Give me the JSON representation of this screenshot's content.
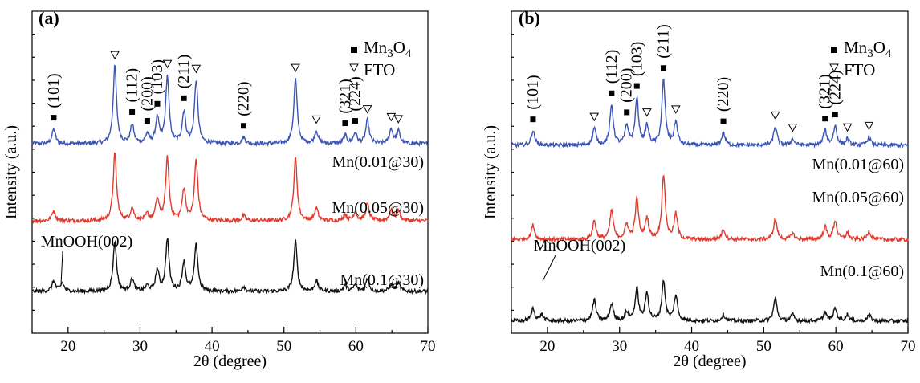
{
  "chart_data": [
    {
      "type": "line",
      "panel": "(a)",
      "xlabel": "2θ (degree)",
      "ylabel": "Intensity (a.u.)",
      "xlim": [
        15,
        70
      ],
      "xticks": [
        20,
        30,
        40,
        50,
        60,
        70
      ],
      "y_ticks_labeled": false,
      "legend": [
        {
          "marker": "square",
          "label": "Mn",
          "sub1": "3",
          "mid": "O",
          "sub2": "4"
        },
        {
          "marker": "triangle-down",
          "label": "FTO"
        }
      ],
      "legend_position": "top-right",
      "peak_labels": [
        {
          "text": "(101)",
          "x": 18.0
        },
        {
          "text": "(112)",
          "x": 28.9
        },
        {
          "text": "(200)",
          "x": 31.0
        },
        {
          "text": "(103)",
          "x": 32.4
        },
        {
          "text": "(211)",
          "x": 36.1
        },
        {
          "text": "(220)",
          "x": 44.4
        },
        {
          "text": "(321)",
          "x": 58.5
        },
        {
          "text": "(224)",
          "x": 59.9
        }
      ],
      "annotation": "MnOOH(002)",
      "series": [
        {
          "name": "Mn(0.01@30)",
          "color": "#3a55b4",
          "baseline": 0.3,
          "peaks": [
            [
              18.0,
              0.35
            ],
            [
              26.5,
              1.85
            ],
            [
              28.9,
              0.45
            ],
            [
              31.0,
              0.22
            ],
            [
              32.4,
              0.6
            ],
            [
              33.8,
              1.6
            ],
            [
              36.1,
              0.75
            ],
            [
              37.8,
              1.5
            ],
            [
              44.4,
              0.15
            ],
            [
              51.6,
              1.55
            ],
            [
              54.5,
              0.3
            ],
            [
              58.5,
              0.2
            ],
            [
              59.9,
              0.25
            ],
            [
              61.6,
              0.55
            ],
            [
              64.9,
              0.35
            ],
            [
              65.9,
              0.3
            ]
          ],
          "so4_markers": [
            18.0,
            28.9,
            31.0,
            32.4,
            36.1,
            44.4,
            58.5,
            59.9
          ],
          "fto_markers": [
            26.5,
            33.8,
            37.8,
            51.6,
            54.5,
            61.6,
            64.9,
            65.9
          ]
        },
        {
          "name": "Mn(0.05@30)",
          "color": "#e23a2e",
          "baseline": 1.5,
          "peaks": [
            [
              18.0,
              0.25
            ],
            [
              26.5,
              1.6
            ],
            [
              28.9,
              0.3
            ],
            [
              31.0,
              0.15
            ],
            [
              32.4,
              0.5
            ],
            [
              33.8,
              1.5
            ],
            [
              36.1,
              0.75
            ],
            [
              37.8,
              1.45
            ],
            [
              44.4,
              0.12
            ],
            [
              51.6,
              1.5
            ],
            [
              54.5,
              0.3
            ],
            [
              58.5,
              0.15
            ],
            [
              59.9,
              0.2
            ],
            [
              61.6,
              0.4
            ],
            [
              64.9,
              0.25
            ],
            [
              65.9,
              0.25
            ]
          ]
        },
        {
          "name": "Mn(0.1@30)",
          "color": "#111111",
          "baseline": 2.6,
          "peaks": [
            [
              18.0,
              0.25
            ],
            [
              19.2,
              0.2
            ],
            [
              26.5,
              1.2
            ],
            [
              28.9,
              0.3
            ],
            [
              31.0,
              0.12
            ],
            [
              32.4,
              0.5
            ],
            [
              33.8,
              1.25
            ],
            [
              36.1,
              0.7
            ],
            [
              37.8,
              1.1
            ],
            [
              44.4,
              0.12
            ],
            [
              51.6,
              1.2
            ],
            [
              54.5,
              0.25
            ],
            [
              58.5,
              0.15
            ],
            [
              59.9,
              0.15
            ],
            [
              61.6,
              0.3
            ],
            [
              64.9,
              0.15
            ],
            [
              65.9,
              0.2
            ]
          ]
        }
      ]
    },
    {
      "type": "line",
      "panel": "(b)",
      "xlabel": "2θ (degree)",
      "ylabel": "Intensity (a.u.)",
      "xlim": [
        15,
        70
      ],
      "xticks": [
        20,
        30,
        40,
        50,
        60,
        70
      ],
      "y_ticks_labeled": false,
      "legend": [
        {
          "marker": "square",
          "label": "Mn",
          "sub1": "3",
          "mid": "O",
          "sub2": "4"
        },
        {
          "marker": "triangle-down",
          "label": "FTO"
        }
      ],
      "legend_position": "top-right",
      "peak_labels": [
        {
          "text": "(101)",
          "x": 18.0
        },
        {
          "text": "(112)",
          "x": 28.9
        },
        {
          "text": "(200)",
          "x": 31.0
        },
        {
          "text": "(103)",
          "x": 32.4
        },
        {
          "text": "(211)",
          "x": 36.1
        },
        {
          "text": "(220)",
          "x": 44.4
        },
        {
          "text": "(321)",
          "x": 58.5
        },
        {
          "text": "(224)",
          "x": 59.9
        }
      ],
      "annotation": "MnOOH(002)",
      "series": [
        {
          "name": "Mn(0.01@60)",
          "color": "#3a55b4",
          "baseline": 0.0,
          "peaks": [
            [
              18.0,
              0.35
            ],
            [
              26.5,
              0.4
            ],
            [
              28.9,
              0.95
            ],
            [
              31.0,
              0.45
            ],
            [
              32.4,
              1.1
            ],
            [
              33.8,
              0.45
            ],
            [
              36.1,
              1.55
            ],
            [
              37.8,
              0.55
            ],
            [
              44.4,
              0.3
            ],
            [
              51.6,
              0.45
            ],
            [
              54.0,
              0.15
            ],
            [
              58.5,
              0.35
            ],
            [
              59.9,
              0.45
            ],
            [
              61.6,
              0.15
            ],
            [
              64.6,
              0.2
            ]
          ],
          "so4_markers": [
            18.0,
            28.9,
            31.0,
            32.4,
            36.1,
            44.4,
            58.5,
            59.9
          ],
          "fto_markers": [
            26.5,
            33.8,
            37.8,
            51.6,
            54.0,
            61.6,
            64.6
          ]
        },
        {
          "name": "Mn(0.05@60)",
          "color": "#e23a2e",
          "baseline": 1.45,
          "peaks": [
            [
              18.0,
              0.35
            ],
            [
              26.5,
              0.45
            ],
            [
              28.9,
              0.7
            ],
            [
              31.0,
              0.35
            ],
            [
              32.4,
              0.95
            ],
            [
              33.8,
              0.5
            ],
            [
              36.1,
              1.55
            ],
            [
              37.8,
              0.6
            ],
            [
              44.4,
              0.25
            ],
            [
              51.6,
              0.5
            ],
            [
              54.0,
              0.15
            ],
            [
              58.5,
              0.3
            ],
            [
              59.9,
              0.45
            ],
            [
              61.6,
              0.15
            ],
            [
              64.6,
              0.2
            ]
          ]
        },
        {
          "name": "Mn(0.1@60)",
          "color": "#111111",
          "baseline": 2.7,
          "peaks": [
            [
              18.0,
              0.3
            ],
            [
              19.2,
              0.15
            ],
            [
              26.5,
              0.5
            ],
            [
              28.9,
              0.4
            ],
            [
              31.0,
              0.2
            ],
            [
              32.4,
              0.75
            ],
            [
              33.8,
              0.65
            ],
            [
              36.1,
              0.95
            ],
            [
              37.8,
              0.6
            ],
            [
              44.4,
              0.15
            ],
            [
              51.6,
              0.55
            ],
            [
              54.0,
              0.15
            ],
            [
              58.5,
              0.2
            ],
            [
              59.9,
              0.3
            ],
            [
              61.6,
              0.15
            ],
            [
              64.6,
              0.15
            ]
          ]
        }
      ]
    }
  ]
}
